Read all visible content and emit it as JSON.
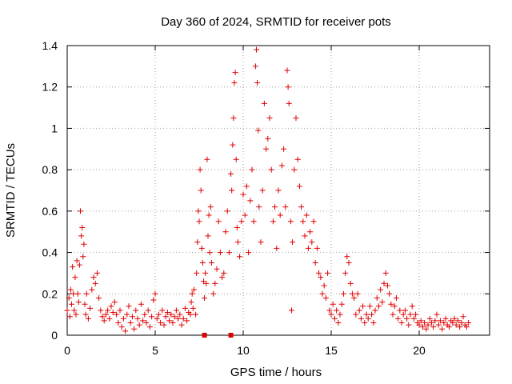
{
  "chart_data": {
    "type": "scatter",
    "title": "Day 360 of 2024, SRMTID for receiver pots",
    "xlabel": "GPS time / hours",
    "ylabel": "SRMTID / TECUs",
    "xlim": [
      0,
      24
    ],
    "ylim": [
      0,
      1.4
    ],
    "x_ticks": [
      0,
      5,
      10,
      15,
      20
    ],
    "x_tick_labels": [
      "0",
      "5",
      "10",
      "15",
      "20"
    ],
    "y_ticks": [
      0,
      0.2,
      0.4,
      0.6,
      0.8,
      1.0,
      1.2,
      1.4
    ],
    "y_tick_labels": [
      "0",
      "0.2",
      "0.4",
      "0.6",
      "0.8",
      "1",
      "1.2",
      "1.4"
    ],
    "grid": true,
    "marker": "plus",
    "color": "#e00000",
    "series": [
      {
        "name": "SRMTID",
        "points": [
          [
            0.0,
            0.12
          ],
          [
            0.1,
            0.18
          ],
          [
            0.15,
            0.09
          ],
          [
            0.2,
            0.22
          ],
          [
            0.25,
            0.15
          ],
          [
            0.3,
            0.33
          ],
          [
            0.35,
            0.2
          ],
          [
            0.4,
            0.12
          ],
          [
            0.45,
            0.28
          ],
          [
            0.5,
            0.1
          ],
          [
            0.55,
            0.36
          ],
          [
            0.6,
            0.2
          ],
          [
            0.65,
            0.16
          ],
          [
            0.7,
            0.34
          ],
          [
            0.75,
            0.6
          ],
          [
            0.8,
            0.48
          ],
          [
            0.85,
            0.52
          ],
          [
            0.9,
            0.38
          ],
          [
            0.95,
            0.44
          ],
          [
            1.0,
            0.15
          ],
          [
            1.05,
            0.1
          ],
          [
            1.1,
            0.2
          ],
          [
            1.2,
            0.08
          ],
          [
            1.3,
            0.13
          ],
          [
            1.4,
            0.22
          ],
          [
            1.5,
            0.28
          ],
          [
            1.6,
            0.25
          ],
          [
            1.7,
            0.3
          ],
          [
            1.8,
            0.18
          ],
          [
            1.9,
            0.12
          ],
          [
            2.0,
            0.09
          ],
          [
            2.1,
            0.07
          ],
          [
            2.2,
            0.1
          ],
          [
            2.3,
            0.12
          ],
          [
            2.4,
            0.08
          ],
          [
            2.5,
            0.14
          ],
          [
            2.6,
            0.11
          ],
          [
            2.7,
            0.16
          ],
          [
            2.8,
            0.1
          ],
          [
            2.9,
            0.06
          ],
          [
            3.0,
            0.12
          ],
          [
            3.1,
            0.04
          ],
          [
            3.2,
            0.08
          ],
          [
            3.3,
            0.02
          ],
          [
            3.4,
            0.1
          ],
          [
            3.5,
            0.14
          ],
          [
            3.6,
            0.06
          ],
          [
            3.7,
            0.09
          ],
          [
            3.8,
            0.03
          ],
          [
            3.9,
            0.12
          ],
          [
            4.0,
            0.08
          ],
          [
            4.1,
            0.05
          ],
          [
            4.2,
            0.15
          ],
          [
            4.3,
            0.07
          ],
          [
            4.4,
            0.1
          ],
          [
            4.5,
            0.06
          ],
          [
            4.6,
            0.12
          ],
          [
            4.7,
            0.04
          ],
          [
            4.8,
            0.09
          ],
          [
            4.9,
            0.17
          ],
          [
            5.0,
            0.2
          ],
          [
            5.1,
            0.08
          ],
          [
            5.2,
            0.1
          ],
          [
            5.3,
            0.06
          ],
          [
            5.4,
            0.12
          ],
          [
            5.5,
            0.05
          ],
          [
            5.6,
            0.09
          ],
          [
            5.7,
            0.11
          ],
          [
            5.8,
            0.07
          ],
          [
            5.9,
            0.1
          ],
          [
            6.0,
            0.06
          ],
          [
            6.1,
            0.09
          ],
          [
            6.2,
            0.12
          ],
          [
            6.3,
            0.08
          ],
          [
            6.4,
            0.1
          ],
          [
            6.5,
            0.05
          ],
          [
            6.6,
            0.08
          ],
          [
            6.7,
            0.13
          ],
          [
            6.8,
            0.07
          ],
          [
            6.9,
            0.11
          ],
          [
            7.0,
            0.1
          ],
          [
            7.05,
            0.16
          ],
          [
            7.1,
            0.2
          ],
          [
            7.15,
            0.13
          ],
          [
            7.2,
            0.22
          ],
          [
            7.3,
            0.1
          ],
          [
            7.35,
            0.3
          ],
          [
            7.4,
            0.45
          ],
          [
            7.45,
            0.6
          ],
          [
            7.5,
            0.55
          ],
          [
            7.55,
            0.8
          ],
          [
            7.6,
            0.7
          ],
          [
            7.65,
            0.42
          ],
          [
            7.7,
            0.35
          ],
          [
            7.75,
            0.26
          ],
          [
            7.8,
            0.18
          ],
          [
            7.85,
            0.3
          ],
          [
            7.9,
            0.25
          ],
          [
            7.95,
            0.85
          ],
          [
            8.0,
            0.48
          ],
          [
            8.05,
            0.58
          ],
          [
            8.1,
            0.4
          ],
          [
            8.15,
            0.62
          ],
          [
            8.2,
            0.35
          ],
          [
            8.3,
            0.2
          ],
          [
            8.4,
            0.25
          ],
          [
            8.5,
            0.32
          ],
          [
            8.6,
            0.55
          ],
          [
            8.7,
            0.4
          ],
          [
            8.8,
            0.28
          ],
          [
            8.9,
            0.3
          ],
          [
            9.0,
            0.5
          ],
          [
            9.1,
            0.6
          ],
          [
            9.2,
            0.4
          ],
          [
            9.3,
            0.78
          ],
          [
            9.35,
            0.7
          ],
          [
            9.4,
            0.92
          ],
          [
            9.45,
            1.05
          ],
          [
            9.5,
            1.22
          ],
          [
            9.55,
            1.27
          ],
          [
            9.6,
            0.85
          ],
          [
            9.65,
            0.52
          ],
          [
            9.7,
            0.45
          ],
          [
            9.8,
            0.38
          ],
          [
            9.9,
            0.55
          ],
          [
            10.0,
            0.68
          ],
          [
            10.1,
            0.58
          ],
          [
            10.2,
            0.72
          ],
          [
            10.3,
            0.4
          ],
          [
            10.4,
            0.65
          ],
          [
            10.5,
            0.8
          ],
          [
            10.6,
            0.55
          ],
          [
            10.7,
            1.3
          ],
          [
            10.75,
            1.38
          ],
          [
            10.8,
            1.22
          ],
          [
            10.85,
            0.99
          ],
          [
            10.9,
            0.62
          ],
          [
            11.0,
            0.45
          ],
          [
            11.1,
            0.7
          ],
          [
            11.2,
            1.12
          ],
          [
            11.3,
            0.9
          ],
          [
            11.4,
            0.95
          ],
          [
            11.5,
            1.05
          ],
          [
            11.6,
            0.8
          ],
          [
            11.7,
            0.55
          ],
          [
            11.8,
            0.62
          ],
          [
            11.9,
            0.42
          ],
          [
            12.0,
            0.7
          ],
          [
            12.1,
            0.58
          ],
          [
            12.2,
            0.82
          ],
          [
            12.3,
            0.9
          ],
          [
            12.4,
            0.62
          ],
          [
            12.5,
            1.28
          ],
          [
            12.55,
            1.2
          ],
          [
            12.6,
            1.12
          ],
          [
            12.7,
            0.55
          ],
          [
            12.75,
            0.12
          ],
          [
            12.8,
            0.45
          ],
          [
            12.9,
            0.8
          ],
          [
            13.0,
            1.05
          ],
          [
            13.1,
            0.85
          ],
          [
            13.2,
            0.72
          ],
          [
            13.3,
            0.62
          ],
          [
            13.4,
            0.55
          ],
          [
            13.5,
            0.48
          ],
          [
            13.6,
            0.58
          ],
          [
            13.7,
            0.42
          ],
          [
            13.8,
            0.5
          ],
          [
            13.9,
            0.45
          ],
          [
            14.0,
            0.55
          ],
          [
            14.1,
            0.35
          ],
          [
            14.2,
            0.42
          ],
          [
            14.3,
            0.3
          ],
          [
            14.4,
            0.28
          ],
          [
            14.5,
            0.2
          ],
          [
            14.6,
            0.24
          ],
          [
            14.7,
            0.18
          ],
          [
            14.8,
            0.3
          ],
          [
            14.9,
            0.12
          ],
          [
            15.0,
            0.1
          ],
          [
            15.1,
            0.15
          ],
          [
            15.2,
            0.08
          ],
          [
            15.3,
            0.12
          ],
          [
            15.4,
            0.06
          ],
          [
            15.5,
            0.1
          ],
          [
            15.6,
            0.15
          ],
          [
            15.7,
            0.2
          ],
          [
            15.8,
            0.3
          ],
          [
            15.9,
            0.38
          ],
          [
            16.0,
            0.35
          ],
          [
            16.1,
            0.25
          ],
          [
            16.2,
            0.2
          ],
          [
            16.3,
            0.18
          ],
          [
            16.4,
            0.1
          ],
          [
            16.5,
            0.2
          ],
          [
            16.6,
            0.12
          ],
          [
            16.7,
            0.08
          ],
          [
            16.8,
            0.14
          ],
          [
            16.9,
            0.06
          ],
          [
            17.0,
            0.1
          ],
          [
            17.1,
            0.08
          ],
          [
            17.2,
            0.14
          ],
          [
            17.3,
            0.1
          ],
          [
            17.4,
            0.06
          ],
          [
            17.5,
            0.12
          ],
          [
            17.6,
            0.18
          ],
          [
            17.7,
            0.14
          ],
          [
            17.8,
            0.22
          ],
          [
            17.9,
            0.16
          ],
          [
            18.0,
            0.25
          ],
          [
            18.1,
            0.3
          ],
          [
            18.2,
            0.24
          ],
          [
            18.3,
            0.2
          ],
          [
            18.4,
            0.15
          ],
          [
            18.5,
            0.1
          ],
          [
            18.6,
            0.14
          ],
          [
            18.7,
            0.18
          ],
          [
            18.8,
            0.08
          ],
          [
            18.9,
            0.12
          ],
          [
            19.0,
            0.06
          ],
          [
            19.1,
            0.1
          ],
          [
            19.2,
            0.12
          ],
          [
            19.3,
            0.08
          ],
          [
            19.4,
            0.05
          ],
          [
            19.5,
            0.1
          ],
          [
            19.6,
            0.14
          ],
          [
            19.7,
            0.08
          ],
          [
            19.8,
            0.1
          ],
          [
            19.9,
            0.06
          ],
          [
            20.0,
            0.05
          ],
          [
            20.1,
            0.07
          ],
          [
            20.2,
            0.04
          ],
          [
            20.3,
            0.06
          ],
          [
            20.4,
            0.03
          ],
          [
            20.5,
            0.05
          ],
          [
            20.6,
            0.08
          ],
          [
            20.7,
            0.06
          ],
          [
            20.8,
            0.04
          ],
          [
            20.9,
            0.07
          ],
          [
            21.0,
            0.1
          ],
          [
            21.1,
            0.05
          ],
          [
            21.2,
            0.07
          ],
          [
            21.3,
            0.03
          ],
          [
            21.4,
            0.06
          ],
          [
            21.5,
            0.08
          ],
          [
            21.6,
            0.05
          ],
          [
            21.7,
            0.04
          ],
          [
            21.8,
            0.07
          ],
          [
            21.9,
            0.06
          ],
          [
            22.0,
            0.08
          ],
          [
            22.1,
            0.05
          ],
          [
            22.2,
            0.07
          ],
          [
            22.3,
            0.04
          ],
          [
            22.4,
            0.06
          ],
          [
            22.5,
            0.09
          ],
          [
            22.6,
            0.05
          ],
          [
            22.7,
            0.04
          ],
          [
            22.8,
            0.06
          ]
        ]
      }
    ],
    "square_markers": [
      [
        7.8,
        0.0
      ],
      [
        9.3,
        0.0
      ]
    ]
  }
}
